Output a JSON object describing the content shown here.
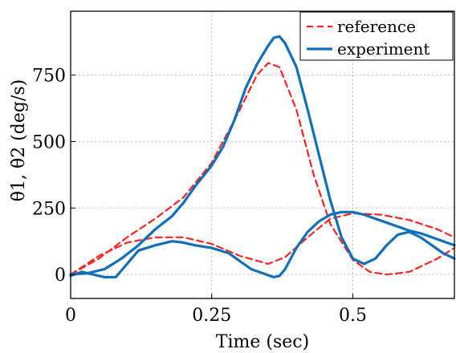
{
  "chart_data": {
    "type": "line",
    "title": "",
    "xlabel": "Time (sec)",
    "ylabel": "θ̇1, θ̇2 (deg/s)",
    "xlim": [
      0,
      0.68
    ],
    "ylim": [
      -90,
      990
    ],
    "xticks": [
      0,
      0.25,
      0.5
    ],
    "xtick_labels": [
      "0",
      "0.25",
      "0.5"
    ],
    "yticks": [
      0,
      250,
      500,
      750
    ],
    "ytick_labels": [
      "0",
      "250",
      "500",
      "750"
    ],
    "grid": true,
    "legend_position": "top-right",
    "colors": {
      "reference": "#ff2222",
      "experiment": "#0f6fb8"
    },
    "series": [
      {
        "name": "reference",
        "style": "dashed",
        "x": [
          0,
          0.05,
          0.1,
          0.15,
          0.2,
          0.25,
          0.3,
          0.33,
          0.35,
          0.37,
          0.4,
          0.43,
          0.46,
          0.5,
          0.53,
          0.56,
          0.6,
          0.65,
          0.68
        ],
        "y": [
          0,
          60,
          140,
          210,
          290,
          420,
          620,
          750,
          795,
          780,
          620,
          380,
          190,
          55,
          10,
          0,
          10,
          60,
          100
        ]
      },
      {
        "name": "reference",
        "style": "dashed",
        "x": [
          0,
          0.05,
          0.1,
          0.15,
          0.2,
          0.25,
          0.3,
          0.35,
          0.38,
          0.42,
          0.46,
          0.5,
          0.55,
          0.6,
          0.65,
          0.68
        ],
        "y": [
          0,
          70,
          120,
          140,
          140,
          115,
          70,
          40,
          65,
          140,
          210,
          230,
          225,
          205,
          170,
          140
        ]
      },
      {
        "name": "experiment",
        "style": "solid",
        "x": [
          0,
          0.03,
          0.06,
          0.09,
          0.12,
          0.15,
          0.18,
          0.2,
          0.22,
          0.25,
          0.27,
          0.29,
          0.31,
          0.33,
          0.35,
          0.36,
          0.37,
          0.38,
          0.4,
          0.42,
          0.44,
          0.46,
          0.48,
          0.5,
          0.52,
          0.54,
          0.56,
          0.58,
          0.6,
          0.62,
          0.64,
          0.66,
          0.68
        ],
        "y": [
          0,
          5,
          20,
          60,
          110,
          170,
          220,
          270,
          330,
          410,
          480,
          580,
          700,
          790,
          860,
          890,
          895,
          870,
          780,
          620,
          450,
          280,
          140,
          60,
          40,
          60,
          110,
          150,
          160,
          140,
          110,
          80,
          60
        ]
      },
      {
        "name": "experiment",
        "style": "solid",
        "x": [
          0,
          0.02,
          0.04,
          0.06,
          0.08,
          0.1,
          0.12,
          0.15,
          0.18,
          0.2,
          0.22,
          0.25,
          0.28,
          0.3,
          0.32,
          0.34,
          0.36,
          0.37,
          0.38,
          0.4,
          0.42,
          0.44,
          0.46,
          0.48,
          0.5,
          0.52,
          0.54,
          0.56,
          0.58,
          0.6,
          0.62,
          0.64,
          0.66,
          0.68
        ],
        "y": [
          -5,
          10,
          0,
          -10,
          -10,
          40,
          90,
          110,
          125,
          120,
          110,
          100,
          80,
          50,
          20,
          5,
          -10,
          -5,
          20,
          100,
          160,
          200,
          225,
          235,
          235,
          225,
          210,
          195,
          180,
          165,
          155,
          140,
          125,
          110
        ]
      }
    ]
  }
}
